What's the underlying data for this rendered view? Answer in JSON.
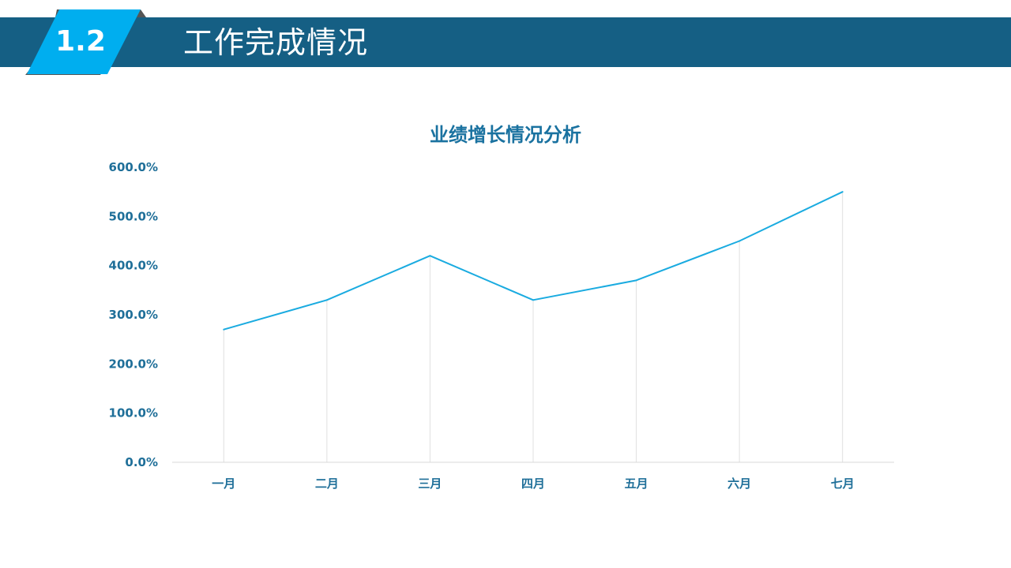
{
  "header": {
    "section_number": "1.2",
    "title": "工作完成情况"
  },
  "colors": {
    "header_bar": "#155f84",
    "badge": "#00aeef",
    "line": "#1aabe0",
    "label": "#1f6f99"
  },
  "chart_data": {
    "type": "line",
    "title": "业绩增长情况分析",
    "categories": [
      "一月",
      "二月",
      "三月",
      "四月",
      "五月",
      "六月",
      "七月"
    ],
    "series": [
      {
        "values": [
          270,
          330,
          420,
          330,
          370,
          450,
          550
        ]
      }
    ],
    "ylim": [
      0,
      600
    ],
    "yticks": [
      "0.0%",
      "100.0%",
      "200.0%",
      "300.0%",
      "400.0%",
      "500.0%",
      "600.0%"
    ],
    "drop_lines": true,
    "grid": false,
    "legend": "none"
  }
}
